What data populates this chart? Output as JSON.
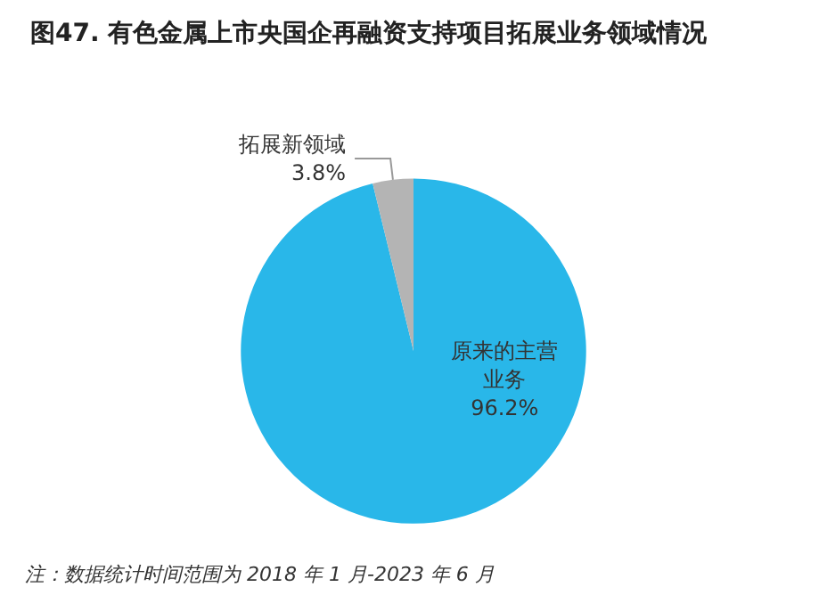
{
  "chart_data": {
    "type": "pie",
    "title": "图47. 有色金属上市央国企再融资支持项目拓展业务领域情况",
    "categories": [
      "原来的主营业务",
      "拓展新领域"
    ],
    "values": [
      96.2,
      3.8
    ],
    "value_labels": [
      "96.2%",
      "3.8%"
    ],
    "colors": [
      "#29b7e9",
      "#b4b4b4"
    ],
    "legend": false,
    "annotations": [
      "注：数据统计时间范围为 2018 年 1 月-2023 年 6 月"
    ]
  }
}
